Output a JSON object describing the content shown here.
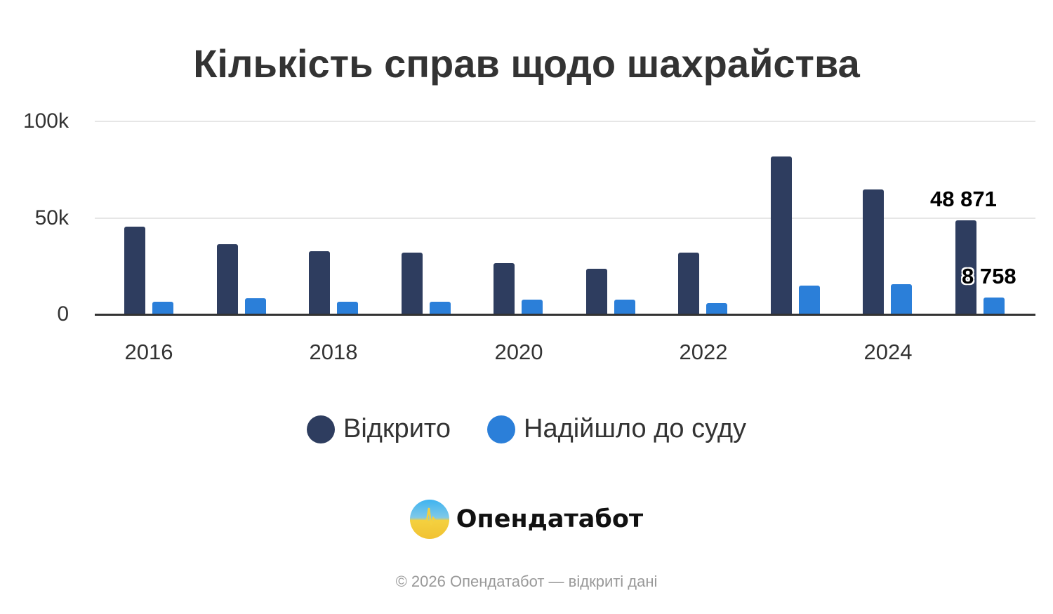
{
  "chart_data": {
    "type": "bar",
    "title": "Кількість справ щодо шахрайства",
    "xlabel": "",
    "ylabel": "",
    "ylim": [
      0,
      100000
    ],
    "yticks": [
      "0",
      "50k",
      "100k"
    ],
    "xticks": [
      "2016",
      "2018",
      "2020",
      "2022",
      "2024"
    ],
    "categories": [
      "2016",
      "2017",
      "2018",
      "2019",
      "2020",
      "2021",
      "2022",
      "2023",
      "2024",
      "2025"
    ],
    "series": [
      {
        "name": "Відкрито",
        "color": "#2e3d5f",
        "values": [
          45500,
          36500,
          32800,
          32000,
          26500,
          23700,
          32000,
          82000,
          64800,
          48871
        ]
      },
      {
        "name": "Надійшло до суду",
        "color": "#2b7fd9",
        "values": [
          6500,
          8300,
          6500,
          6500,
          7500,
          7500,
          5800,
          15000,
          15600,
          8758
        ]
      }
    ],
    "data_labels": [
      {
        "series": "Відкрито",
        "category": "2025",
        "text": "48 871"
      },
      {
        "series": "Надійшло до суду",
        "category": "2025",
        "text": "8 758"
      }
    ],
    "grid": true,
    "legend_position": "bottom"
  },
  "title": "Кількість справ щодо шахрайства",
  "yaxis": {
    "t0": "0",
    "t50": "50k",
    "t100": "100k"
  },
  "xaxis": {
    "l2016": "2016",
    "l2018": "2018",
    "l2020": "2020",
    "l2022": "2022",
    "l2024": "2024"
  },
  "labels": {
    "opened_last": "48 871",
    "court_last": "8 758"
  },
  "legend": {
    "opened": "Відкрито",
    "court": "Надійшло до суду"
  },
  "brand": {
    "name": "Опендатабот"
  },
  "footer": {
    "text": "© 2026 Опендатабот — відкриті дані"
  }
}
